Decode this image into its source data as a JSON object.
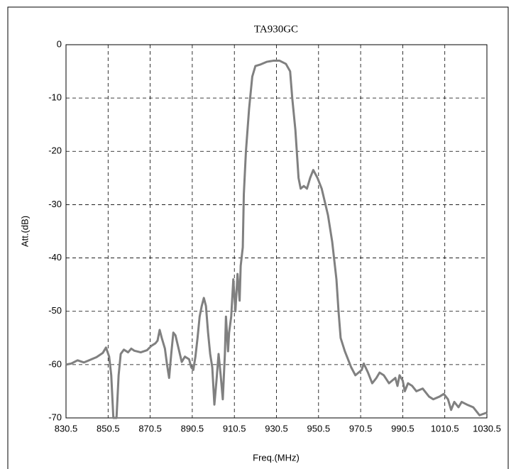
{
  "chart_data": {
    "type": "line",
    "title": "TA930GC",
    "xlabel": "Freq.(MHz)",
    "ylabel": "Att.(dB)",
    "x": [
      830.5,
      833,
      836,
      839,
      842,
      845,
      848,
      849.5,
      851,
      852,
      853,
      854.5,
      855.5,
      856.5,
      858,
      860,
      861.5,
      863,
      866,
      869,
      871,
      873,
      874,
      875,
      876,
      877.5,
      878.5,
      879.5,
      880.5,
      881.5,
      882.5,
      884,
      885.5,
      887,
      889,
      890,
      891,
      892,
      893,
      894,
      895,
      896,
      897,
      898,
      899,
      900,
      901,
      902,
      903,
      904,
      905,
      906,
      906.5,
      907.5,
      908,
      909,
      910,
      911,
      912,
      913,
      913.5,
      914.5,
      915,
      916,
      917.5,
      919,
      920.5,
      923,
      926,
      929,
      932,
      935,
      937,
      938,
      939.5,
      941,
      942,
      943.5,
      945,
      946.5,
      948,
      950,
      952,
      955,
      957,
      959,
      960,
      961,
      963,
      966,
      968,
      971,
      972,
      974,
      976,
      978,
      979.5,
      981.5,
      984,
      987,
      988,
      989,
      990.5,
      991.5,
      993,
      995,
      997,
      1000,
      1003,
      1005,
      1008,
      1010,
      1012,
      1013.5,
      1015,
      1017,
      1018.5,
      1021,
      1024,
      1027,
      1030.5
    ],
    "values": [
      -60,
      -59.8,
      -59.2,
      -59.6,
      -59.1,
      -58.6,
      -57.8,
      -56.8,
      -58.5,
      -62,
      -70,
      -70,
      -62,
      -58,
      -57.2,
      -57.7,
      -57,
      -57.4,
      -57.7,
      -57.3,
      -56.5,
      -56,
      -55.5,
      -53.5,
      -55,
      -57,
      -60,
      -62.5,
      -58,
      -54,
      -54.5,
      -57,
      -59.5,
      -58.5,
      -59,
      -60.5,
      -61,
      -58.5,
      -55,
      -51,
      -49,
      -47.5,
      -49,
      -54,
      -58,
      -60.5,
      -67.5,
      -63,
      -58,
      -62,
      -66.5,
      -58,
      -51,
      -57.5,
      -54,
      -51,
      -44,
      -50,
      -43,
      -48,
      -41.5,
      -38,
      -28,
      -20,
      -12,
      -6,
      -4,
      -3.7,
      -3.2,
      -3,
      -3,
      -3.6,
      -5,
      -10,
      -16,
      -25,
      -27,
      -26.5,
      -27,
      -25,
      -23.5,
      -25,
      -27,
      -32,
      -37,
      -44,
      -50,
      -55,
      -57.5,
      -60.5,
      -62,
      -61,
      -59.8,
      -61.5,
      -63.5,
      -62.5,
      -61.5,
      -62,
      -63.5,
      -62.5,
      -64,
      -62,
      -63,
      -65,
      -63.5,
      -64,
      -65,
      -64.5,
      -66,
      -66.5,
      -66,
      -65.5,
      -66.5,
      -68.5,
      -67,
      -68,
      -67,
      -67.5,
      -68,
      -69.5,
      -69
    ],
    "color": "#808080",
    "xlim": [
      830.5,
      1030.5
    ],
    "xticks": [
      830.5,
      850.5,
      870.5,
      890.5,
      910.5,
      930.5,
      950.5,
      970.5,
      990.5,
      1010.5,
      1030.5
    ],
    "ylim": [
      -70,
      0
    ],
    "yticks": [
      0,
      -10,
      -20,
      -30,
      -40,
      -50,
      -60,
      -70
    ],
    "grid": true
  }
}
